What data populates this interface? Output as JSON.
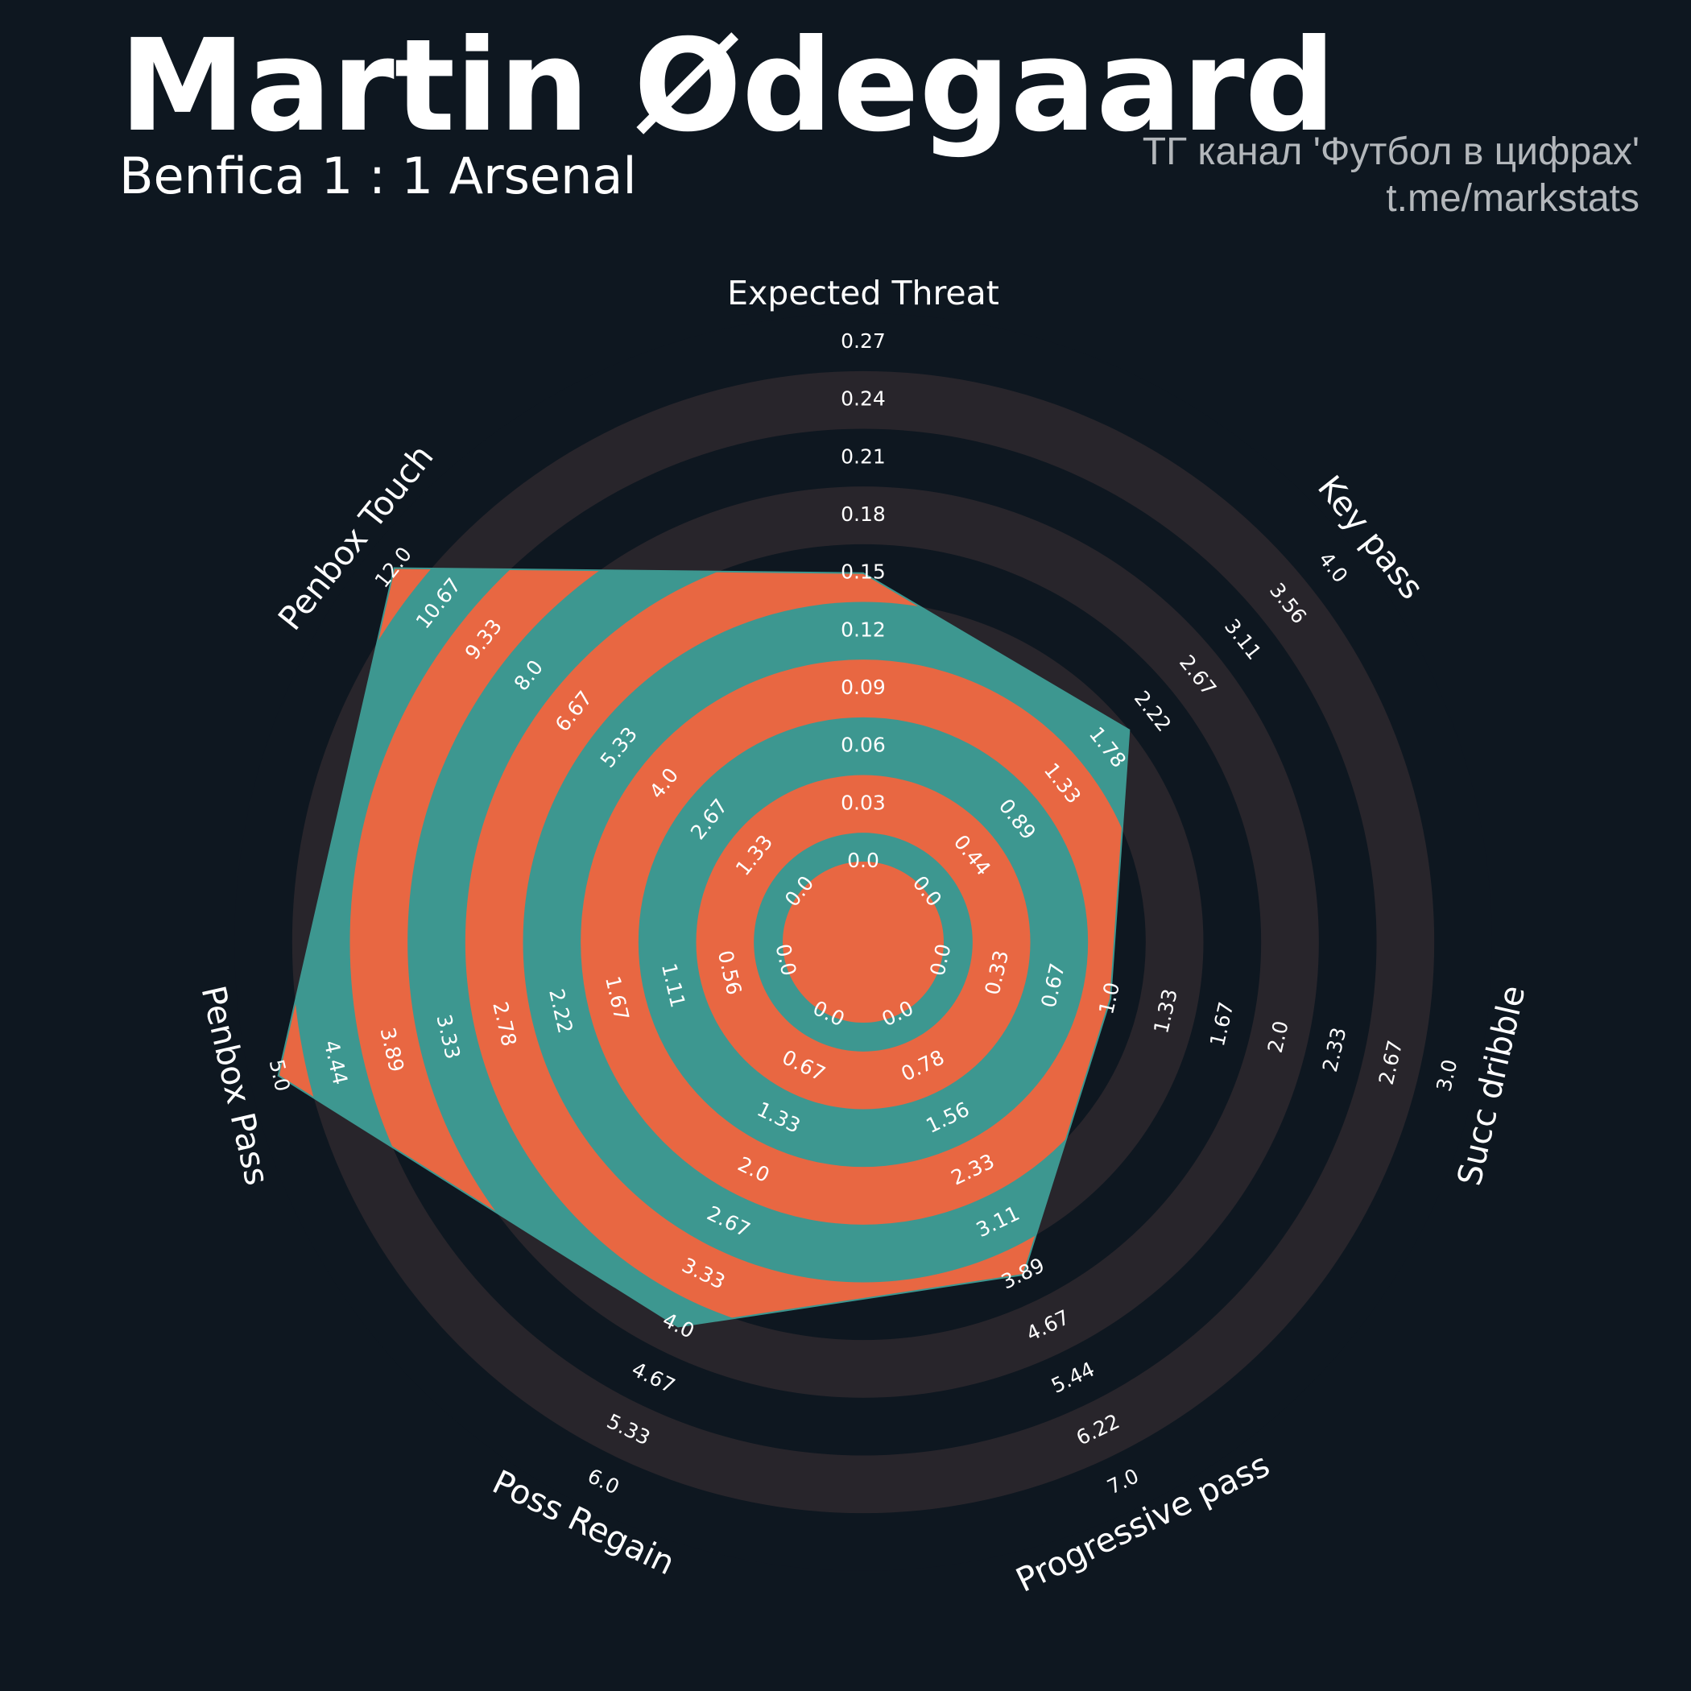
{
  "header": {
    "player_name": "Martin Ødegaard",
    "match": "Benfica 1 : 1 Arsenal",
    "credit_line1": "ТГ канал 'Футбол в цифрах'",
    "credit_line2": "t.me/markstats"
  },
  "colors": {
    "background": "#0e1720",
    "ring_dark": "#28252b",
    "ring_light": "#0e1720",
    "player_fill": "#3d9790",
    "player_ring": "#e86742",
    "text": "#ffffff",
    "credit_text": "#b3b7bb"
  },
  "chart_data": {
    "type": "radar",
    "title": "Martin Ødegaard",
    "subtitle": "Benfica 1 : 1 Arsenal",
    "params": [
      "Expected Threat",
      "Key pass",
      "Succ dribble",
      "Progressive pass",
      "Poss Regain",
      "Penbox Pass",
      "Penbox Touch"
    ],
    "ranges": [
      [
        0,
        0.27
      ],
      [
        0,
        4.0
      ],
      [
        0,
        3.0
      ],
      [
        0,
        7.0
      ],
      [
        0,
        6.0
      ],
      [
        0,
        5.0
      ],
      [
        0,
        12.0
      ]
    ],
    "series": [
      {
        "values": [
          0.15,
          2.0,
          1.0,
          3.89,
          4.0,
          5.0,
          12.0
        ]
      }
    ],
    "tick_labels": [
      [
        "0.0",
        "0.03",
        "0.06",
        "0.09",
        "0.12",
        "0.15",
        "0.18",
        "0.21",
        "0.24",
        "0.27"
      ],
      [
        "0.0",
        "0.44",
        "0.89",
        "1.33",
        "1.78",
        "2.22",
        "2.67",
        "3.11",
        "3.56",
        "4.0"
      ],
      [
        "0.0",
        "0.33",
        "0.67",
        "1.0",
        "1.33",
        "1.67",
        "2.0",
        "2.33",
        "2.67",
        "3.0"
      ],
      [
        "0.0",
        "0.78",
        "1.56",
        "2.33",
        "3.11",
        "3.89",
        "4.67",
        "5.44",
        "6.22",
        "7.0"
      ],
      [
        "0.0",
        "0.67",
        "1.33",
        "2.0",
        "2.67",
        "3.33",
        "4.0",
        "4.67",
        "5.33",
        "6.0"
      ],
      [
        "0.0",
        "0.56",
        "1.11",
        "1.67",
        "2.22",
        "2.78",
        "3.33",
        "3.89",
        "4.44",
        "5.0"
      ],
      [
        "0.0",
        "1.33",
        "2.67",
        "4.0",
        "5.33",
        "6.67",
        "8.0",
        "9.33",
        "10.67",
        "12.0"
      ]
    ]
  }
}
